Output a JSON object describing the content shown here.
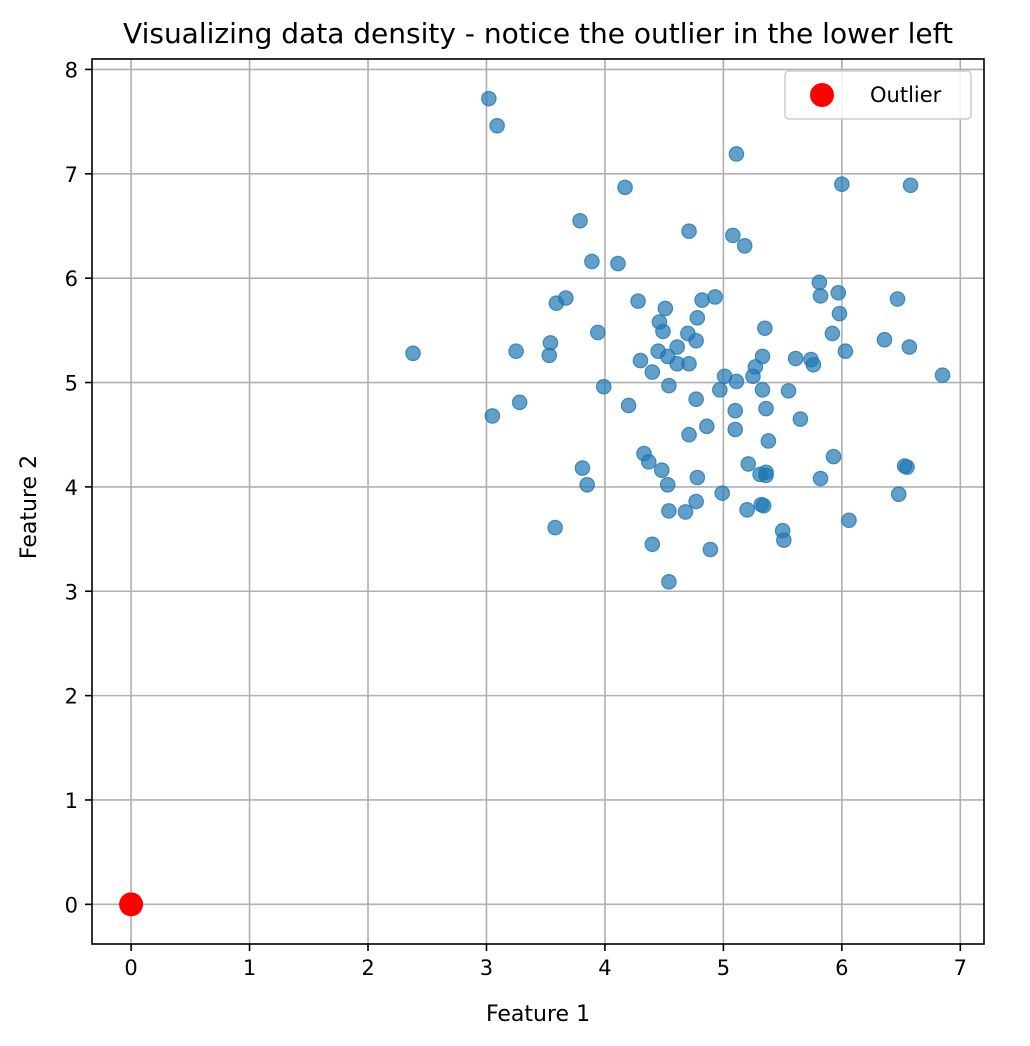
{
  "chart_data": {
    "type": "scatter",
    "title": "Visualizing data density - notice the outlier in the lower left",
    "xlabel": "Feature 1",
    "ylabel": "Feature 2",
    "xlim": [
      -0.33,
      7.2
    ],
    "ylim": [
      -0.38,
      8.1
    ],
    "xticks": [
      0,
      1,
      2,
      3,
      4,
      5,
      6,
      7
    ],
    "yticks": [
      0,
      1,
      2,
      3,
      4,
      5,
      6,
      7,
      8
    ],
    "grid": true,
    "legend_position": "top-right",
    "colors": {
      "points": "#1f77b4",
      "outlier": "#ff0000"
    },
    "series": [
      {
        "values": [
          [
            3.02,
            7.72
          ],
          [
            3.09,
            7.46
          ],
          [
            5.11,
            7.19
          ],
          [
            4.17,
            6.87
          ],
          [
            6.0,
            6.9
          ],
          [
            6.58,
            6.89
          ],
          [
            3.79,
            6.55
          ],
          [
            4.71,
            6.45
          ],
          [
            5.08,
            6.41
          ],
          [
            5.18,
            6.31
          ],
          [
            3.89,
            6.16
          ],
          [
            4.11,
            6.14
          ],
          [
            5.81,
            5.96
          ],
          [
            5.97,
            5.86
          ],
          [
            5.82,
            5.83
          ],
          [
            6.47,
            5.8
          ],
          [
            3.67,
            5.81
          ],
          [
            3.59,
            5.76
          ],
          [
            4.28,
            5.78
          ],
          [
            4.82,
            5.79
          ],
          [
            4.93,
            5.82
          ],
          [
            4.51,
            5.71
          ],
          [
            5.98,
            5.66
          ],
          [
            4.78,
            5.62
          ],
          [
            4.46,
            5.58
          ],
          [
            5.35,
            5.52
          ],
          [
            3.94,
            5.48
          ],
          [
            4.49,
            5.49
          ],
          [
            4.7,
            5.47
          ],
          [
            5.92,
            5.47
          ],
          [
            6.36,
            5.41
          ],
          [
            3.54,
            5.38
          ],
          [
            4.77,
            5.4
          ],
          [
            4.61,
            5.34
          ],
          [
            6.57,
            5.34
          ],
          [
            3.25,
            5.3
          ],
          [
            4.45,
            5.3
          ],
          [
            6.03,
            5.3
          ],
          [
            2.38,
            5.28
          ],
          [
            3.53,
            5.26
          ],
          [
            4.53,
            5.25
          ],
          [
            5.33,
            5.25
          ],
          [
            5.61,
            5.23
          ],
          [
            5.74,
            5.22
          ],
          [
            4.3,
            5.21
          ],
          [
            4.61,
            5.18
          ],
          [
            4.71,
            5.18
          ],
          [
            5.76,
            5.17
          ],
          [
            5.27,
            5.15
          ],
          [
            4.4,
            5.1
          ],
          [
            5.25,
            5.06
          ],
          [
            5.01,
            5.06
          ],
          [
            6.85,
            5.07
          ],
          [
            5.11,
            5.01
          ],
          [
            4.54,
            4.97
          ],
          [
            3.99,
            4.96
          ],
          [
            4.97,
            4.93
          ],
          [
            5.33,
            4.93
          ],
          [
            5.55,
            4.92
          ],
          [
            3.28,
            4.81
          ],
          [
            4.77,
            4.84
          ],
          [
            4.2,
            4.78
          ],
          [
            5.36,
            4.75
          ],
          [
            5.1,
            4.73
          ],
          [
            3.05,
            4.68
          ],
          [
            5.65,
            4.65
          ],
          [
            4.86,
            4.58
          ],
          [
            5.1,
            4.55
          ],
          [
            4.71,
            4.5
          ],
          [
            5.38,
            4.44
          ],
          [
            4.33,
            4.32
          ],
          [
            5.93,
            4.29
          ],
          [
            4.37,
            4.24
          ],
          [
            5.21,
            4.22
          ],
          [
            6.53,
            4.2
          ],
          [
            6.55,
            4.19
          ],
          [
            3.81,
            4.18
          ],
          [
            4.48,
            4.16
          ],
          [
            5.36,
            4.14
          ],
          [
            5.31,
            4.12
          ],
          [
            5.36,
            4.11
          ],
          [
            4.78,
            4.09
          ],
          [
            5.82,
            4.08
          ],
          [
            3.85,
            4.02
          ],
          [
            4.53,
            4.02
          ],
          [
            4.99,
            3.94
          ],
          [
            6.48,
            3.93
          ],
          [
            4.77,
            3.86
          ],
          [
            5.32,
            3.83
          ],
          [
            5.34,
            3.82
          ],
          [
            5.2,
            3.78
          ],
          [
            4.54,
            3.77
          ],
          [
            4.68,
            3.76
          ],
          [
            6.06,
            3.68
          ],
          [
            3.58,
            3.61
          ],
          [
            5.5,
            3.58
          ],
          [
            5.51,
            3.49
          ],
          [
            4.4,
            3.45
          ],
          [
            4.89,
            3.4
          ],
          [
            4.54,
            3.09
          ]
        ]
      },
      {
        "name": "Outlier",
        "values": [
          [
            0.0,
            0.0
          ]
        ]
      }
    ]
  }
}
